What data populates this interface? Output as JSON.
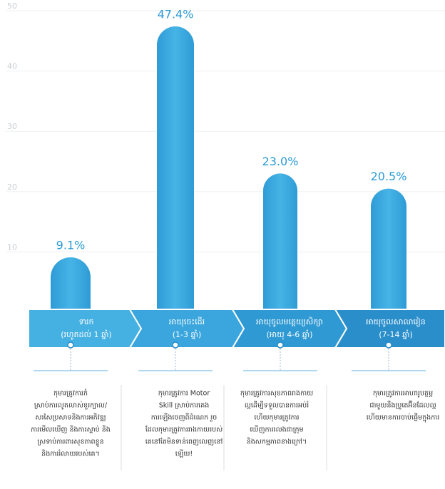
{
  "chart_data": {
    "type": "bar",
    "categories": [
      "ទារក",
      "អាយុចេះដើរ",
      "អាយុចូលមត្តេយ្យសិក្សា",
      "អាយុចូលសាលារៀន"
    ],
    "category_ages": [
      "(រហូតដល់ 1 ឆ្នាំ)",
      "(1-3 ឆ្នាំ)",
      "(អាយុ 4-6 ឆ្នាំ)",
      "(7-14 ឆ្នាំ)"
    ],
    "values": [
      9.1,
      47.4,
      23.0,
      20.5
    ],
    "value_labels": [
      "9.1%",
      "47.4%",
      "23.0%",
      "20.5%"
    ],
    "color": "#2a9ad4",
    "ylim": [
      0,
      50
    ],
    "yticks": [
      10,
      20,
      30,
      40,
      50
    ],
    "grid": true
  },
  "descriptions": [
    [
      "កុមារត្រូវការកំ",
      "ស្រាប់ការលូតលាស់ខួរក្បាល/",
      "សរសៃប្រសាទនិងការអភិវឌ្ឍ",
      "ការមើលឃើញ និងការស្តាប់ និង",
      "ស្រទាប់ការពារសុខភាពខ្លួន",
      "និងការរំលាយរបស់គេ។"
    ],
    [
      "កុមារត្រូវការ Motor",
      "Skill ស្រាប់ការគេង",
      "ការឡើងចេញពីដំណេក រួច",
      "ដែលកុមារត្រូវការរាងកាយរបស់",
      "គេនៅតែមិនទាន់ពេញលេញនៅ",
      "ឡើយ!"
    ],
    [
      "កុមារត្រូវការសុខភាពរាងកាយ",
      "ល្អដើម្បីទទួលបានការអប់រំ",
      "ហើយកុមារត្រូវការ",
      "ឃើញការលេងជាក្រុម",
      "និងសកម្មភាពខាងក្រៅ។"
    ],
    [
      "កុមារត្រូវការអាហារូបត្ថម្ភ",
      "ជាមួយនឹងប្រូតេអ៊ីនដែលល្អ",
      "ហើយមានការចាប់ផ្តើមក្នុងការ"
    ]
  ]
}
